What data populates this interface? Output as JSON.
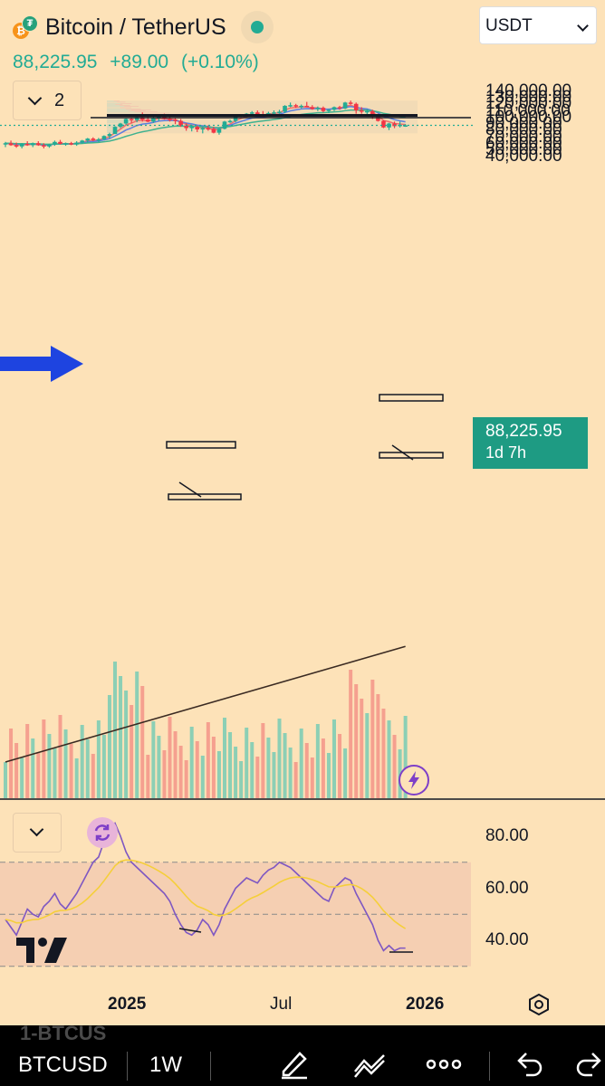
{
  "header": {
    "title": "Bitcoin / TetherUS",
    "last_price": "88,225.95",
    "change": "+89.00",
    "change_pct": "(+0.10%)",
    "indicator_count": "2",
    "currency": "USDT",
    "coin_glyph": "₿",
    "quote_glyph": "₮"
  },
  "price_tag": {
    "price": "88,225.95",
    "countdown": "1d 7h"
  },
  "colors": {
    "up": "#22ab94",
    "down": "#f23645",
    "background": "#fde2b8",
    "ema_fast": "#ef6f6c",
    "ema_mid": "#5b7fe0",
    "ema_slow": "#3fb28f",
    "sma_long": "#3a2a22",
    "rsi": "#7e57c2",
    "rsi_ma": "#f5cf3a",
    "arrow": "#1e44e0"
  },
  "icons": {
    "reset": "refresh-icon",
    "replay": "flash-icon",
    "settings": "gear-icon",
    "logo": "tradingview-logo"
  },
  "rsi": {
    "levels": [
      80,
      60,
      40
    ],
    "labels": [
      "80.00",
      "60.00",
      "40.00"
    ]
  },
  "time_axis": {
    "labels": [
      "2025",
      "Jul",
      "2026"
    ]
  },
  "toolbar": {
    "symbol": "BTCUSD",
    "interval": "1W",
    "ghost_text": "1-BTCUS"
  },
  "chart_data": {
    "type": "candlestick",
    "interval": "1W",
    "y_axis": {
      "ticks": [
        140000,
        130000,
        120000,
        110000,
        100000,
        90000,
        80000,
        70000,
        60000,
        50000,
        40000
      ],
      "tick_labels": [
        "140,000.00",
        "130,000.00",
        "120,000.00",
        "110,000.00",
        "100,000.00",
        "90,000.00",
        "80,000.00",
        "70,000.00",
        "60,000.00",
        "50,000.00",
        "40,000.00"
      ],
      "range": [
        33000,
        145000
      ]
    },
    "horizontal_lines": [
      103500,
      100000
    ],
    "candles": [
      [
        59000,
        63000,
        55000,
        61000
      ],
      [
        61000,
        65000,
        57000,
        58000
      ],
      [
        58000,
        62000,
        54000,
        56000
      ],
      [
        56000,
        61000,
        53000,
        60000
      ],
      [
        60000,
        64000,
        57000,
        58000
      ],
      [
        58000,
        62000,
        55000,
        61000
      ],
      [
        61000,
        64000,
        57000,
        58000
      ],
      [
        58000,
        61000,
        53000,
        56000
      ],
      [
        56000,
        60000,
        54000,
        59000
      ],
      [
        59000,
        65000,
        57000,
        63000
      ],
      [
        63000,
        66000,
        59000,
        60000
      ],
      [
        60000,
        62000,
        57000,
        61000
      ],
      [
        61000,
        63000,
        58000,
        59000
      ],
      [
        59000,
        64000,
        57000,
        62000
      ],
      [
        62000,
        66000,
        60000,
        65000
      ],
      [
        65000,
        69000,
        62000,
        68000
      ],
      [
        68000,
        70000,
        64000,
        66000
      ],
      [
        66000,
        69000,
        63000,
        67000
      ],
      [
        67000,
        73000,
        66000,
        72000
      ],
      [
        72000,
        77000,
        68000,
        75000
      ],
      [
        75000,
        87000,
        75000,
        86000
      ],
      [
        86000,
        92000,
        84000,
        91000
      ],
      [
        91000,
        99000,
        89000,
        98000
      ],
      [
        98000,
        100000,
        92000,
        96000
      ],
      [
        96000,
        105000,
        93000,
        101000
      ],
      [
        101000,
        108000,
        94000,
        97000
      ],
      [
        97000,
        102000,
        93000,
        94000
      ],
      [
        94000,
        102000,
        92000,
        99000
      ],
      [
        99000,
        104000,
        95000,
        102000
      ],
      [
        102000,
        106000,
        97000,
        98000
      ],
      [
        98000,
        102000,
        94000,
        97000
      ],
      [
        97000,
        100000,
        90000,
        95000
      ],
      [
        95000,
        98000,
        86000,
        88000
      ],
      [
        88000,
        92000,
        80000,
        84000
      ],
      [
        84000,
        89000,
        79000,
        86000
      ],
      [
        86000,
        88000,
        78000,
        82000
      ],
      [
        82000,
        86000,
        76000,
        84000
      ],
      [
        84000,
        88000,
        80000,
        83000
      ],
      [
        83000,
        86000,
        76000,
        77000
      ],
      [
        77000,
        84000,
        74000,
        83000
      ],
      [
        83000,
        95000,
        82000,
        94000
      ],
      [
        94000,
        97000,
        92000,
        95000
      ],
      [
        95000,
        104000,
        93000,
        103000
      ],
      [
        103000,
        105000,
        101000,
        104000
      ],
      [
        104000,
        107000,
        102000,
        106000
      ],
      [
        106000,
        110000,
        103000,
        108000
      ],
      [
        108000,
        111000,
        104000,
        105000
      ],
      [
        105000,
        110000,
        101000,
        104000
      ],
      [
        104000,
        109000,
        102000,
        107000
      ],
      [
        107000,
        111000,
        104000,
        108000
      ],
      [
        108000,
        112000,
        106000,
        109000
      ],
      [
        109000,
        119000,
        107000,
        118000
      ],
      [
        118000,
        123000,
        116000,
        119000
      ],
      [
        119000,
        121000,
        115000,
        117000
      ],
      [
        117000,
        120000,
        114000,
        118000
      ],
      [
        118000,
        124000,
        116000,
        116000
      ],
      [
        116000,
        119000,
        112000,
        113000
      ],
      [
        113000,
        117000,
        110000,
        115000
      ],
      [
        115000,
        117000,
        108000,
        110000
      ],
      [
        110000,
        113000,
        107000,
        112000
      ],
      [
        112000,
        117000,
        110000,
        116000
      ],
      [
        116000,
        118000,
        112000,
        114000
      ],
      [
        114000,
        124000,
        113000,
        123000
      ],
      [
        123000,
        126000,
        120000,
        121000
      ],
      [
        121000,
        123000,
        106000,
        111000
      ],
      [
        111000,
        116000,
        106000,
        109000
      ],
      [
        109000,
        113000,
        103000,
        110000
      ],
      [
        110000,
        112000,
        98000,
        102000
      ],
      [
        102000,
        106000,
        94000,
        95000
      ],
      [
        95000,
        96000,
        84000,
        85000
      ],
      [
        85000,
        92000,
        81000,
        91000
      ],
      [
        91000,
        94000,
        84000,
        87000
      ],
      [
        87000,
        94000,
        85000,
        89000
      ],
      [
        88000,
        90000,
        86000,
        88226
      ]
    ],
    "volume_profile_range": [
      76000,
      126000
    ],
    "rsi_range": [
      30,
      90
    ]
  }
}
